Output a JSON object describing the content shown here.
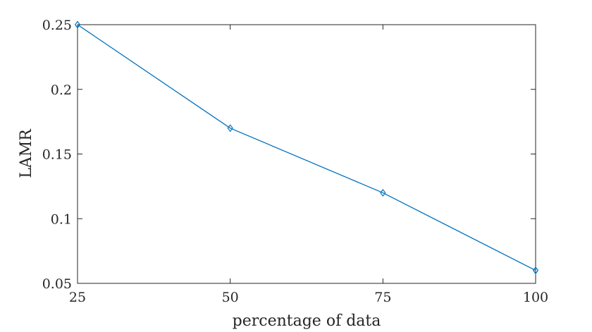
{
  "chart_data": {
    "type": "line",
    "title": "",
    "xlabel": "percentage of data",
    "ylabel": "LAMR",
    "x": [
      25,
      50,
      75,
      100
    ],
    "series": [
      {
        "values": [
          0.25,
          0.17,
          0.12,
          0.06
        ],
        "color": "#0072BD",
        "marker": "diamond"
      }
    ],
    "xlim": [
      25,
      100
    ],
    "ylim": [
      0.05,
      0.25
    ],
    "xticks": [
      25,
      50,
      75,
      100
    ],
    "yticks": [
      0.05,
      0.1,
      0.15,
      0.2,
      0.25
    ],
    "xtick_labels": [
      "25",
      "50",
      "75",
      "100"
    ],
    "ytick_labels": [
      "0.05",
      "0.1",
      "0.15",
      "0.2",
      "0.25"
    ],
    "grid": false,
    "legend": "none"
  }
}
